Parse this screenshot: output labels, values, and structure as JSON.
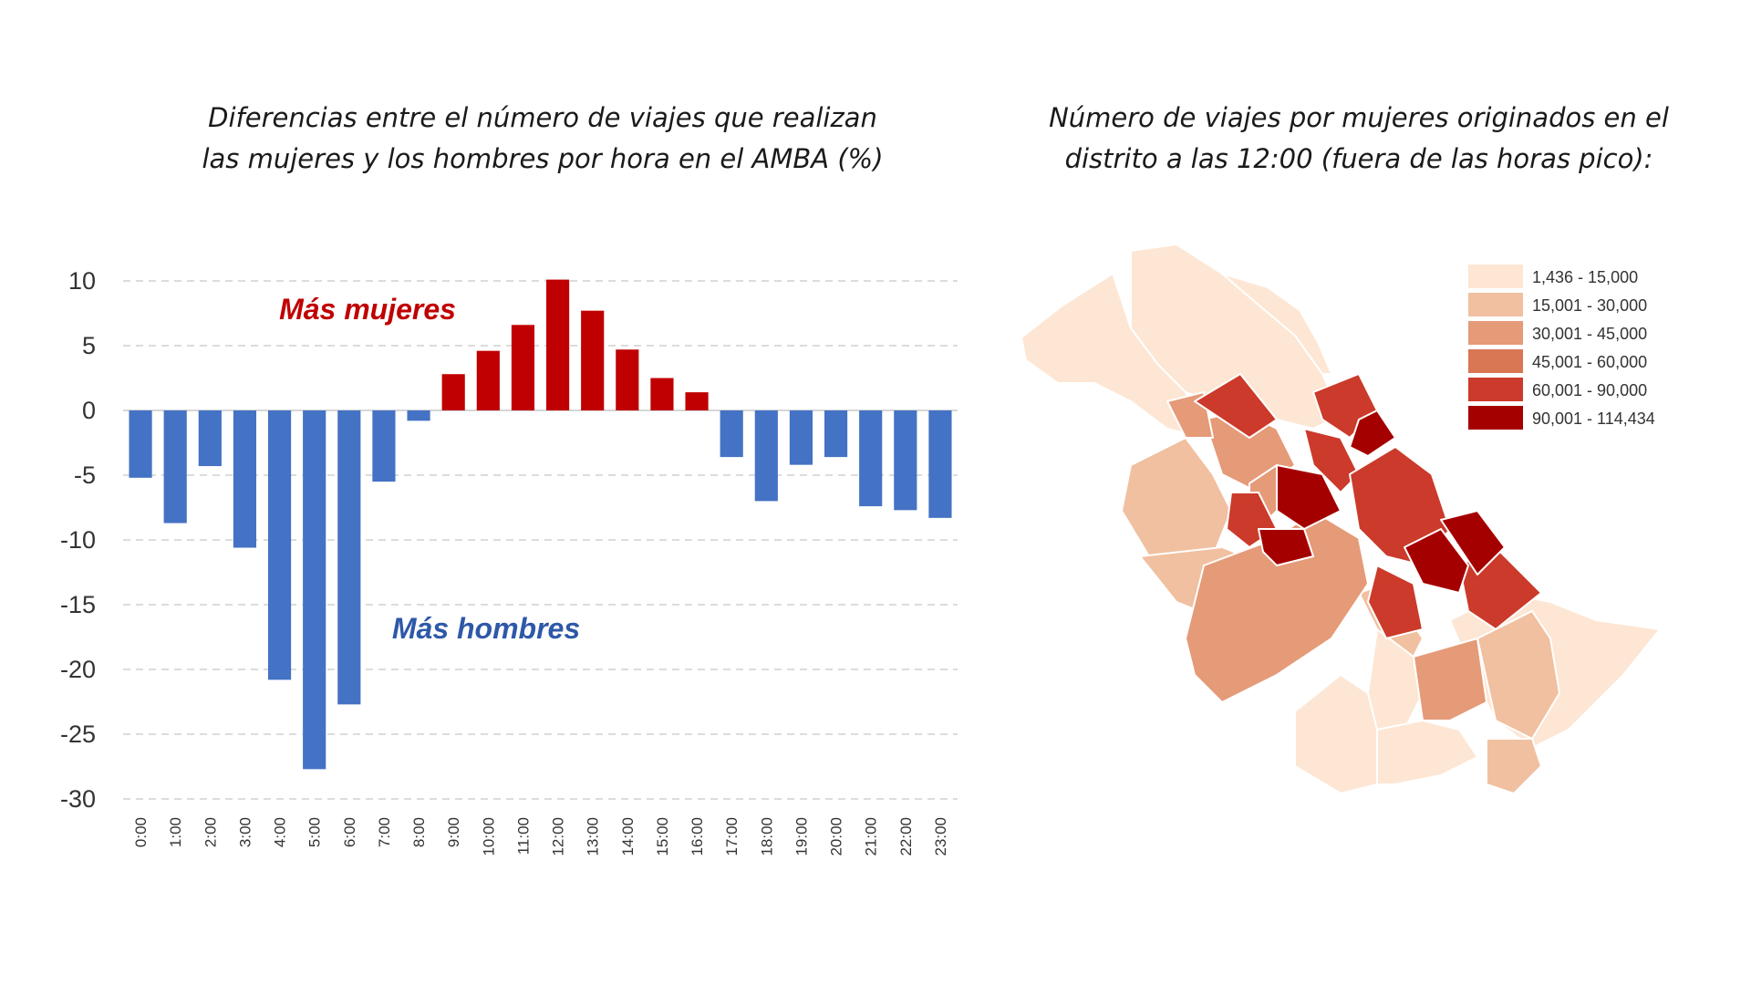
{
  "left_chart": {
    "title": "Diferencias entre el número de viajes que realizan las mujeres y los hombres por hora en el AMBA (%)",
    "chart_data": {
      "type": "bar",
      "categories": [
        "0:00",
        "1:00",
        "2:00",
        "3:00",
        "4:00",
        "5:00",
        "6:00",
        "7:00",
        "8:00",
        "9:00",
        "10:00",
        "11:00",
        "12:00",
        "13:00",
        "14:00",
        "15:00",
        "16:00",
        "17:00",
        "18:00",
        "19:00",
        "20:00",
        "21:00",
        "22:00",
        "23:00"
      ],
      "values": [
        -5.2,
        -8.7,
        -4.3,
        -10.6,
        -20.8,
        -27.7,
        -22.7,
        -5.5,
        -0.8,
        2.8,
        4.6,
        6.6,
        10.1,
        7.7,
        4.7,
        2.5,
        1.4,
        -3.6,
        -7.0,
        -4.2,
        -3.6,
        -7.4,
        -7.7,
        -8.3
      ],
      "ylim": [
        -30,
        10
      ],
      "yticks": [
        10,
        5,
        0,
        -5,
        -10,
        -15,
        -20,
        -25,
        -30
      ],
      "grid": true,
      "positive_color": "#c00000",
      "negative_color": "#4472c4",
      "annotations": {
        "positive": "Más mujeres",
        "negative": "Más hombres"
      }
    }
  },
  "right_map": {
    "title": "Número de viajes por mujeres originados en el distrito a las 12:00 (fuera de las horas pico):",
    "legend": [
      {
        "label": "1,436 - 15,000",
        "color": "#fde6d3"
      },
      {
        "label": "15,001 - 30,000",
        "color": "#f0c0a0"
      },
      {
        "label": "30,001 - 45,000",
        "color": "#e59a78"
      },
      {
        "label": "45,001 - 60,000",
        "color": "#d97654"
      },
      {
        "label": "60,001 - 90,000",
        "color": "#cb3a2a"
      },
      {
        "label": "90,001 - 114,434",
        "color": "#a50000"
      }
    ]
  }
}
